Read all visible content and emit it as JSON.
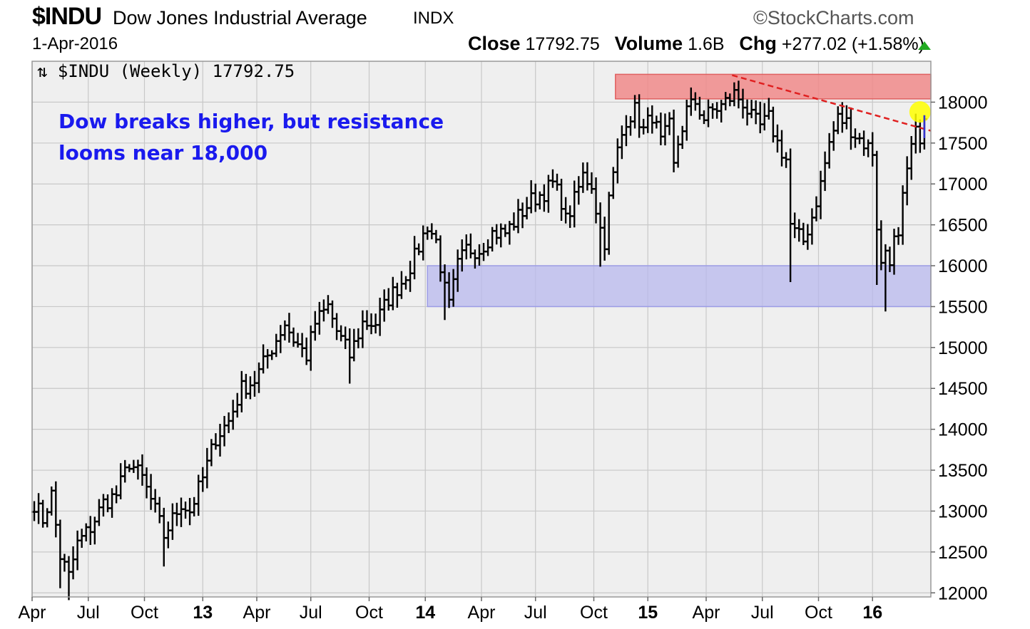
{
  "header": {
    "ticker": "$INDU",
    "name": "Dow Jones Industrial Average",
    "exchange": "INDX",
    "brand": "©StockCharts.com",
    "date": "1-Apr-2016",
    "close_label": "Close",
    "close_value": "17792.75",
    "volume_label": "Volume",
    "volume_value": "1.6B",
    "chg_label": "Chg",
    "chg_value": "+277.02 (+1.58%)"
  },
  "chart_data": {
    "type": "ohlc-bar",
    "inline_label": "$INDU (Weekly) 17792.75",
    "annotation_lines": [
      "Dow breaks higher, but resistance",
      "looms near 18,000"
    ],
    "ylim": [
      11950,
      18500
    ],
    "y_ticks": [
      12000,
      12500,
      13000,
      13500,
      14000,
      14500,
      15000,
      15500,
      16000,
      16500,
      17000,
      17500,
      18000
    ],
    "x_range_weeks": [
      0,
      208
    ],
    "x_ticks": [
      {
        "label": "Apr",
        "week": 0,
        "bold": false
      },
      {
        "label": "Jul",
        "week": 13,
        "bold": false
      },
      {
        "label": "Oct",
        "week": 26,
        "bold": false
      },
      {
        "label": "13",
        "week": 39.5,
        "bold": true
      },
      {
        "label": "Apr",
        "week": 52,
        "bold": false
      },
      {
        "label": "Jul",
        "week": 64.5,
        "bold": false
      },
      {
        "label": "Oct",
        "week": 78,
        "bold": false
      },
      {
        "label": "14",
        "week": 91,
        "bold": true
      },
      {
        "label": "Apr",
        "week": 104,
        "bold": false
      },
      {
        "label": "Jul",
        "week": 116.5,
        "bold": false
      },
      {
        "label": "Oct",
        "week": 130,
        "bold": false
      },
      {
        "label": "15",
        "week": 142.5,
        "bold": true
      },
      {
        "label": "Apr",
        "week": 156,
        "bold": false
      },
      {
        "label": "Jul",
        "week": 169,
        "bold": false
      },
      {
        "label": "Oct",
        "week": 182,
        "bold": false
      },
      {
        "label": "16",
        "week": 194.5,
        "bold": true
      }
    ],
    "anchors": [
      [
        0,
        13100
      ],
      [
        2,
        12900
      ],
      [
        4,
        13200
      ],
      [
        6,
        12450
      ],
      [
        8,
        12200
      ],
      [
        10,
        12600
      ],
      [
        13,
        12800
      ],
      [
        16,
        13100
      ],
      [
        19,
        13200
      ],
      [
        22,
        13600
      ],
      [
        25,
        13400
      ],
      [
        28,
        13000
      ],
      [
        30,
        12700
      ],
      [
        34,
        13100
      ],
      [
        36,
        13000
      ],
      [
        39,
        13400
      ],
      [
        42,
        13900
      ],
      [
        45,
        14100
      ],
      [
        48,
        14500
      ],
      [
        51,
        14600
      ],
      [
        55,
        15000
      ],
      [
        58,
        15300
      ],
      [
        60,
        15100
      ],
      [
        63,
        14900
      ],
      [
        65,
        15300
      ],
      [
        68,
        15500
      ],
      [
        70,
        15200
      ],
      [
        73,
        14900
      ],
      [
        76,
        15300
      ],
      [
        79,
        15300
      ],
      [
        82,
        15600
      ],
      [
        85,
        15800
      ],
      [
        88,
        16100
      ],
      [
        91,
        16500
      ],
      [
        93,
        16300
      ],
      [
        95,
        15700
      ],
      [
        96,
        15500
      ],
      [
        98,
        16000
      ],
      [
        100,
        16200
      ],
      [
        103,
        16200
      ],
      [
        106,
        16400
      ],
      [
        109,
        16400
      ],
      [
        112,
        16600
      ],
      [
        115,
        16800
      ],
      [
        118,
        16900
      ],
      [
        120,
        17000
      ],
      [
        122,
        16800
      ],
      [
        123,
        16550
      ],
      [
        125,
        16800
      ],
      [
        127,
        17100
      ],
      [
        129,
        17000
      ],
      [
        130,
        16700
      ],
      [
        131,
        16450
      ],
      [
        132,
        16300
      ],
      [
        133,
        16800
      ],
      [
        135,
        17400
      ],
      [
        137,
        17800
      ],
      [
        139,
        17900
      ],
      [
        141,
        17650
      ],
      [
        143,
        17850
      ],
      [
        145,
        17500
      ],
      [
        147,
        17700
      ],
      [
        148,
        17200
      ],
      [
        149,
        17500
      ],
      [
        151,
        17900
      ],
      [
        153,
        18000
      ],
      [
        155,
        17800
      ],
      [
        157,
        17900
      ],
      [
        159,
        17950
      ],
      [
        162,
        18100
      ],
      [
        164,
        18000
      ],
      [
        166,
        17800
      ],
      [
        168,
        17700
      ],
      [
        170,
        17800
      ],
      [
        172,
        17500
      ],
      [
        174,
        17300
      ],
      [
        175,
        16500
      ],
      [
        176,
        16400
      ],
      [
        178,
        16300
      ],
      [
        180,
        16600
      ],
      [
        182,
        17000
      ],
      [
        184,
        17500
      ],
      [
        186,
        17800
      ],
      [
        188,
        17750
      ],
      [
        190,
        17600
      ],
      [
        192,
        17500
      ],
      [
        194,
        17400
      ],
      [
        195,
        16500
      ],
      [
        196,
        16000
      ],
      [
        197,
        16200
      ],
      [
        198,
        16100
      ],
      [
        199,
        16300
      ],
      [
        200,
        16300
      ],
      [
        201,
        16800
      ],
      [
        202,
        17100
      ],
      [
        203,
        17450
      ],
      [
        204,
        17600
      ],
      [
        205,
        17600
      ],
      [
        206,
        17792.75
      ]
    ],
    "blue_band": {
      "y0": 15500,
      "y1": 16000,
      "w0": 91.5,
      "w1": 208
    },
    "red_band": {
      "y0": 18040,
      "y1": 18340,
      "w0": 135,
      "w1": 208
    },
    "trendline": {
      "w0": 162,
      "y0": 18330,
      "w1": 208,
      "y1": 17650
    },
    "highlight": {
      "week": 205.5,
      "value": 17880
    },
    "colors": {
      "bars": "#000000",
      "plot_bg": "#efefef",
      "grid": "#c8c8c8",
      "blue_band": "#b8b8ee",
      "red_band": "#f08a8a",
      "trendline": "#e02020",
      "highlight": "#ffff00",
      "annotation": "#1a1aee",
      "up_arrow": "#22aa22"
    }
  }
}
